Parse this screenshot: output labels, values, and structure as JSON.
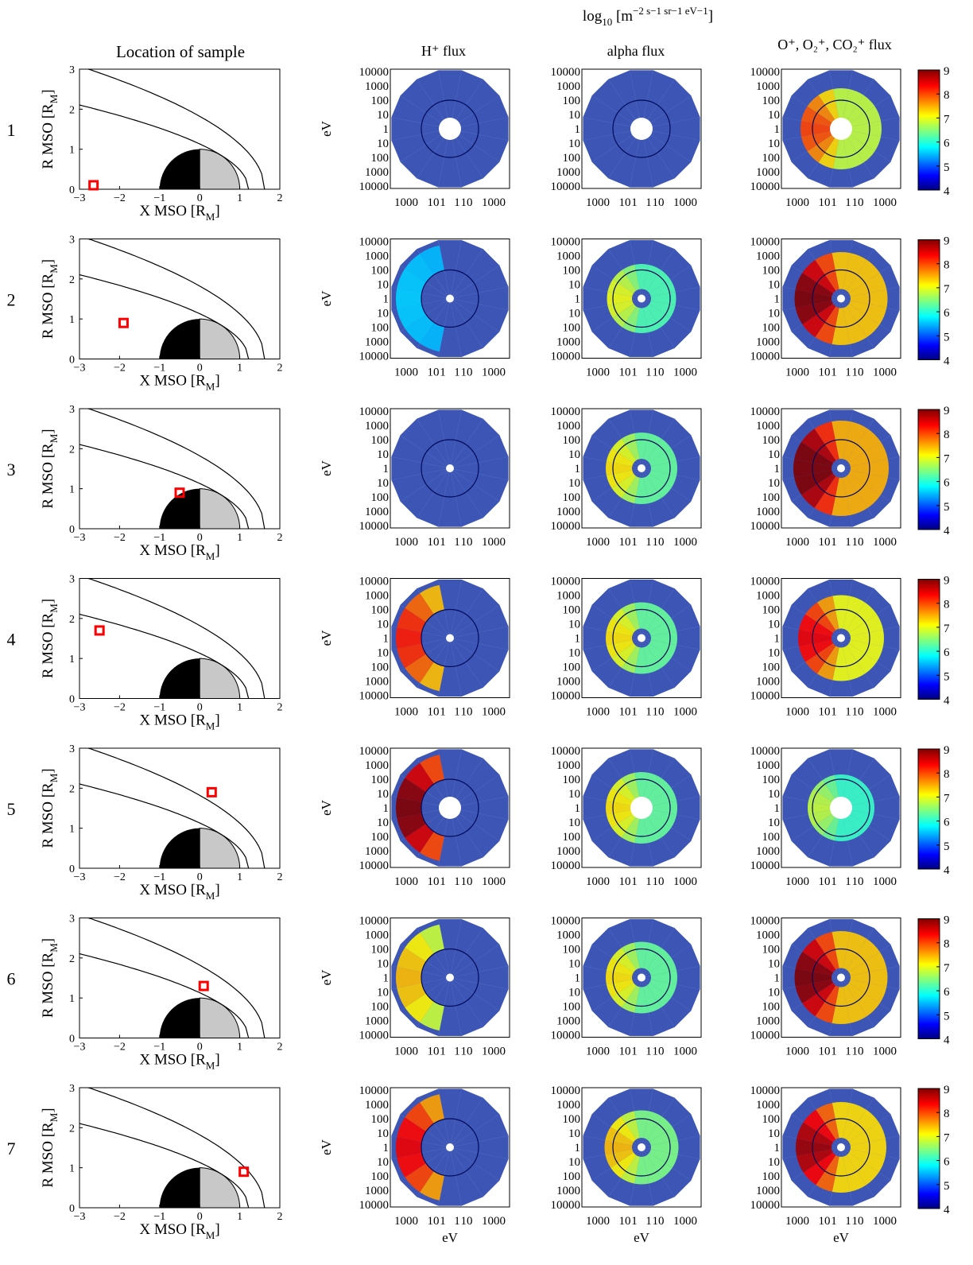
{
  "header": {
    "units": "log",
    "units_sub": "10",
    "units_rest": "[m",
    "units_exp": "−2 s−1 sr−1 eV−1"
  },
  "column_titles": {
    "location": "Location of sample",
    "h_flux": "H⁺ flux",
    "alpha_flux": "alpha flux",
    "heavy_flux": "O⁺, O₂⁺, CO₂⁺ flux"
  },
  "chart_data": {
    "type": "figure-grid",
    "rows": [
      {
        "label": "1",
        "sample": {
          "x": -2.65,
          "r": 0.1
        },
        "colorbar_visible": true
      },
      {
        "label": "2",
        "sample": {
          "x": -1.9,
          "r": 0.9
        },
        "colorbar_visible": true
      },
      {
        "label": "3",
        "sample": {
          "x": -0.5,
          "r": 0.9
        },
        "colorbar_visible": true
      },
      {
        "label": "4",
        "sample": {
          "x": -2.5,
          "r": 1.7
        },
        "colorbar_visible": true
      },
      {
        "label": "5",
        "sample": {
          "x": 0.3,
          "r": 1.9
        },
        "colorbar_visible": true
      },
      {
        "label": "6",
        "sample": {
          "x": 0.1,
          "r": 1.3
        },
        "colorbar_visible": true
      },
      {
        "label": "7",
        "sample": {
          "x": 1.1,
          "r": 0.9
        },
        "colorbar_visible": true
      }
    ],
    "location_plot": {
      "xlabel": "X MSO [R",
      "xlabel_sub": "M",
      "xlabel_end": "]",
      "ylabel": "R MSO [R",
      "ylabel_sub": "M",
      "ylabel_end": "]",
      "xlim": [
        -3,
        2
      ],
      "ylim": [
        0,
        3
      ],
      "xticks": [
        "−3",
        "−2",
        "−1",
        "0",
        "1",
        "2"
      ],
      "yticks": [
        "0",
        "1",
        "2",
        "3"
      ]
    },
    "polar_plot": {
      "rticks": [
        "10000",
        "1000",
        "100",
        "10",
        "1",
        "10",
        "100",
        "1000",
        "10000"
      ],
      "xticks": [
        "1000",
        "10",
        "1",
        "1",
        "10",
        "1000"
      ],
      "ylabel": "eV",
      "xlabel": "eV"
    },
    "colorbar": {
      "min": 4,
      "max": 9,
      "ticks": [
        "4",
        "5",
        "6",
        "7",
        "8",
        "9"
      ],
      "colormap": "jet"
    },
    "flux_patterns": {
      "h": [
        0.0,
        0.1,
        0.0,
        0.75,
        0.95,
        0.55,
        0.8
      ],
      "alpha": [
        0.0,
        0.45,
        0.5,
        0.5,
        0.5,
        0.5,
        0.55
      ],
      "heavy": [
        0.7,
        0.95,
        1.0,
        0.8,
        0.4,
        0.95,
        0.9
      ]
    }
  }
}
